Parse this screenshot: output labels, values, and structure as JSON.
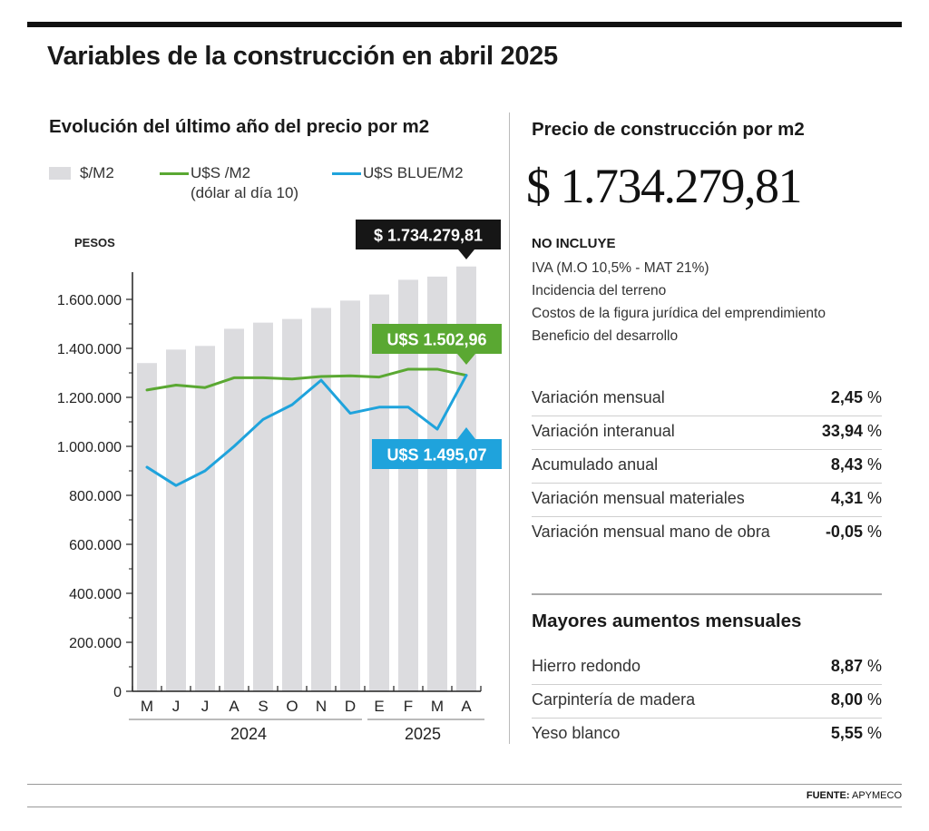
{
  "title": "Variables de la construcción en abril 2025",
  "left_panel": {
    "title": "Evolución del último año del precio por m2",
    "legend": {
      "pesos_label": "$/M2",
      "usd_label": "U$S /M2",
      "usd_sub": "(dólar al día 10)",
      "blue_label": "U$S BLUE/M2"
    },
    "callouts": {
      "pesos": "$ 1.734.279,81",
      "usd": "U$S 1.502,96",
      "blue": "U$S 1.495,07"
    },
    "years": [
      "2024",
      "2025"
    ]
  },
  "right_panel": {
    "title": "Precio de construcción por m2",
    "price": "$ 1.734.279,81",
    "no_incluye_title": "NO INCLUYE",
    "no_incluye": [
      "IVA (M.O 10,5% - MAT 21%)",
      "Incidencia del terreno",
      "Costos de la figura jurídica del emprendimiento",
      "Beneficio del desarrollo"
    ],
    "stats": [
      {
        "label": "Variación mensual",
        "value": "2,45",
        "unit": "%"
      },
      {
        "label": "Variación interanual",
        "value": "33,94",
        "unit": "%"
      },
      {
        "label": "Acumulado anual",
        "value": "8,43",
        "unit": "%"
      },
      {
        "label": "Variación mensual materiales",
        "value": "4,31",
        "unit": "%"
      },
      {
        "label": "Variación mensual mano de obra",
        "value": "-0,05",
        "unit": "%"
      }
    ],
    "aumentos_title": "Mayores aumentos mensuales",
    "aumentos": [
      {
        "label": "Hierro redondo",
        "value": "8,87",
        "unit": "%"
      },
      {
        "label": "Carpintería de madera",
        "value": "8,00",
        "unit": "%"
      },
      {
        "label": "Yeso blanco",
        "value": "5,55",
        "unit": "%"
      }
    ]
  },
  "source_label": "FUENTE:",
  "source_value": "APYMECO",
  "colors": {
    "bar": "#dcdcdf",
    "usd_line": "#5aa832",
    "blue_line": "#1fa3dc",
    "pesos_callout": "#161616"
  },
  "chart_data": {
    "type": "bar",
    "categories": [
      "M",
      "J",
      "J",
      "A",
      "S",
      "O",
      "N",
      "D",
      "E",
      "F",
      "M",
      "A"
    ],
    "ylabel": "PESOS",
    "ylim": [
      0,
      1700000
    ],
    "yticks": [
      0,
      200000,
      400000,
      600000,
      800000,
      1000000,
      1200000,
      1400000,
      1600000
    ],
    "ytick_labels": [
      "0",
      "200.000",
      "400.000",
      "600.000",
      "800.000",
      "1.000.000",
      "1.200.000",
      "1.400.000",
      "1.600.000"
    ],
    "grid": false,
    "series": [
      {
        "name": "$/M2",
        "type": "bar",
        "values": [
          1340000,
          1395000,
          1410000,
          1480000,
          1505000,
          1520000,
          1565000,
          1595000,
          1620000,
          1680000,
          1693000,
          1734279.81
        ]
      },
      {
        "name": "U$S /M2",
        "type": "line",
        "values": [
          1230000,
          1250000,
          1240000,
          1280000,
          1280000,
          1275000,
          1285000,
          1288000,
          1283000,
          1315000,
          1315000,
          1290000
        ]
      },
      {
        "name": "U$S BLUE/M2",
        "type": "line",
        "values": [
          915000,
          840000,
          900000,
          1000000,
          1110000,
          1170000,
          1270000,
          1135000,
          1160000,
          1160000,
          1070000,
          1290000
        ]
      }
    ]
  }
}
